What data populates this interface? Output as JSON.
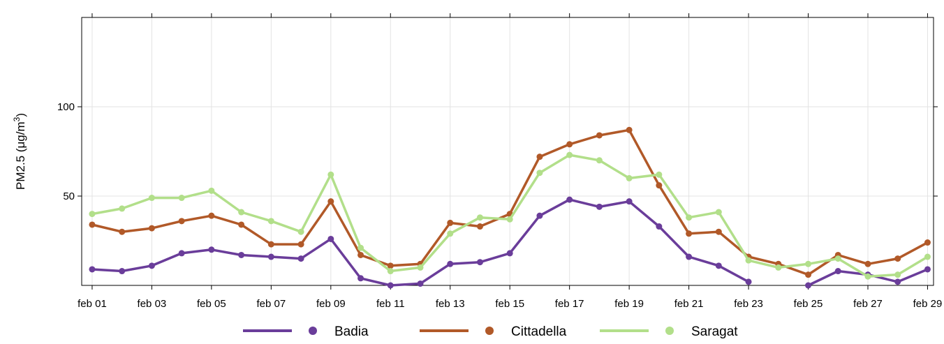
{
  "chart_data": {
    "type": "line",
    "ylabel_main": "PM2.5 (",
    "ylabel_unit": "μg/m",
    "ylabel_sup": "3",
    "ylabel_close": ")",
    "xlabel": "",
    "grid": true,
    "legend_position": "bottom",
    "ylim": [
      0,
      150
    ],
    "y_ticks": [
      50,
      100
    ],
    "x_days": [
      1,
      2,
      3,
      4,
      5,
      6,
      7,
      8,
      9,
      10,
      11,
      12,
      13,
      14,
      15,
      16,
      17,
      18,
      19,
      20,
      21,
      22,
      23,
      24,
      25,
      26,
      27,
      28,
      29
    ],
    "x_tick_labels": [
      {
        "day": 1,
        "label": "feb 01"
      },
      {
        "day": 3,
        "label": "feb 03"
      },
      {
        "day": 5,
        "label": "feb 05"
      },
      {
        "day": 7,
        "label": "feb 07"
      },
      {
        "day": 9,
        "label": "feb 09"
      },
      {
        "day": 11,
        "label": "feb 11"
      },
      {
        "day": 13,
        "label": "feb 13"
      },
      {
        "day": 15,
        "label": "feb 15"
      },
      {
        "day": 17,
        "label": "feb 17"
      },
      {
        "day": 19,
        "label": "feb 19"
      },
      {
        "day": 21,
        "label": "feb 21"
      },
      {
        "day": 23,
        "label": "feb 23"
      },
      {
        "day": 25,
        "label": "feb 25"
      },
      {
        "day": 27,
        "label": "feb 27"
      },
      {
        "day": 29,
        "label": "feb 29"
      }
    ],
    "series": [
      {
        "name": "Badia",
        "color": "#6a3d9a",
        "values": [
          9,
          8,
          11,
          18,
          20,
          17,
          16,
          15,
          26,
          4,
          0,
          1,
          12,
          13,
          18,
          39,
          48,
          44,
          47,
          33,
          16,
          11,
          2,
          null,
          0,
          8,
          6,
          2,
          9
        ]
      },
      {
        "name": "Cittadella",
        "color": "#b15928",
        "values": [
          34,
          30,
          32,
          36,
          39,
          34,
          23,
          23,
          47,
          17,
          11,
          12,
          35,
          33,
          40,
          72,
          79,
          84,
          87,
          56,
          29,
          30,
          16,
          12,
          6,
          17,
          12,
          15,
          24
        ]
      },
      {
        "name": "Saragat",
        "color": "#b2df8a",
        "values": [
          40,
          43,
          49,
          49,
          53,
          41,
          36,
          30,
          62,
          21,
          8,
          10,
          29,
          38,
          37,
          63,
          73,
          70,
          60,
          62,
          38,
          41,
          14,
          10,
          12,
          15,
          5,
          6,
          16
        ]
      }
    ]
  }
}
